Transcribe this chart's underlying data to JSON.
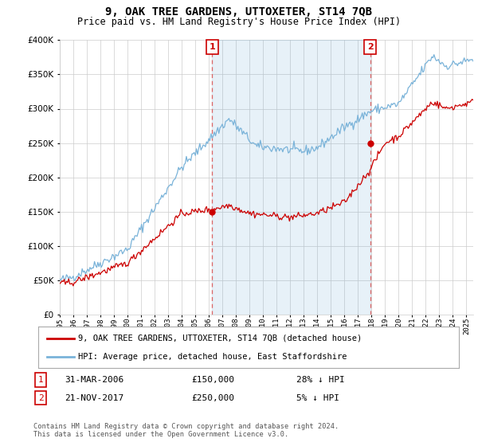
{
  "title": "9, OAK TREE GARDENS, UTTOXETER, ST14 7QB",
  "subtitle": "Price paid vs. HM Land Registry's House Price Index (HPI)",
  "legend_line1": "9, OAK TREE GARDENS, UTTOXETER, ST14 7QB (detached house)",
  "legend_line2": "HPI: Average price, detached house, East Staffordshire",
  "annotation1_label": "1",
  "annotation1_date": "31-MAR-2006",
  "annotation1_price": "£150,000",
  "annotation1_hpi": "28% ↓ HPI",
  "annotation1_year": 2006.25,
  "annotation1_value": 150000,
  "annotation2_label": "2",
  "annotation2_date": "21-NOV-2017",
  "annotation2_price": "£250,000",
  "annotation2_hpi": "5% ↓ HPI",
  "annotation2_year": 2017.9,
  "annotation2_value": 250000,
  "hpi_color": "#7ab3d9",
  "hpi_fill_color": "#ddeeff",
  "price_color": "#cc0000",
  "dashed_line_color": "#dd6666",
  "annotation_box_color": "#cc0000",
  "ylim": [
    0,
    400000
  ],
  "xlim_start": 1995,
  "xlim_end": 2025.5,
  "footnote": "Contains HM Land Registry data © Crown copyright and database right 2024.\nThis data is licensed under the Open Government Licence v3.0.",
  "background_color": "#ffffff",
  "grid_color": "#cccccc"
}
